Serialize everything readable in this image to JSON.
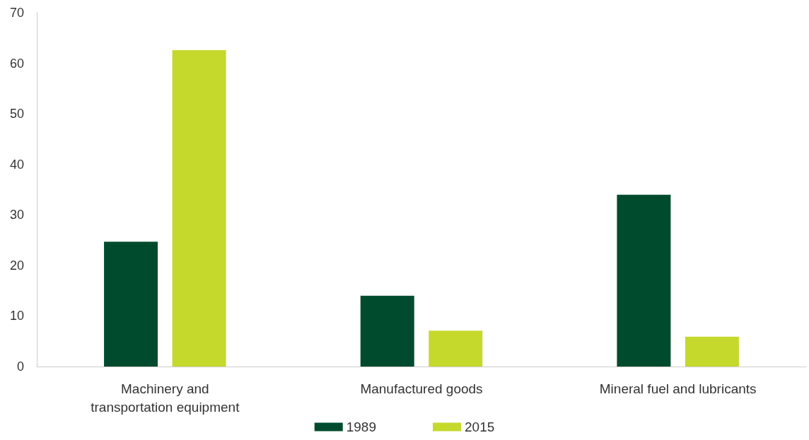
{
  "chart_data": {
    "type": "bar",
    "categories": [
      "Machinery and\ntransportation equipment",
      "Manufactured goods",
      "Mineral fuel and lubricants"
    ],
    "series": [
      {
        "name": "1989",
        "color": "#004b2e",
        "values": [
          24.7,
          14.0,
          34.0
        ]
      },
      {
        "name": "2015",
        "color": "#c5d92d",
        "values": [
          62.6,
          7.1,
          5.9
        ]
      }
    ],
    "ylim": [
      0,
      70
    ],
    "yticks": [
      0,
      10,
      20,
      30,
      40,
      50,
      60,
      70
    ],
    "grid": false,
    "legend": "bottom"
  }
}
